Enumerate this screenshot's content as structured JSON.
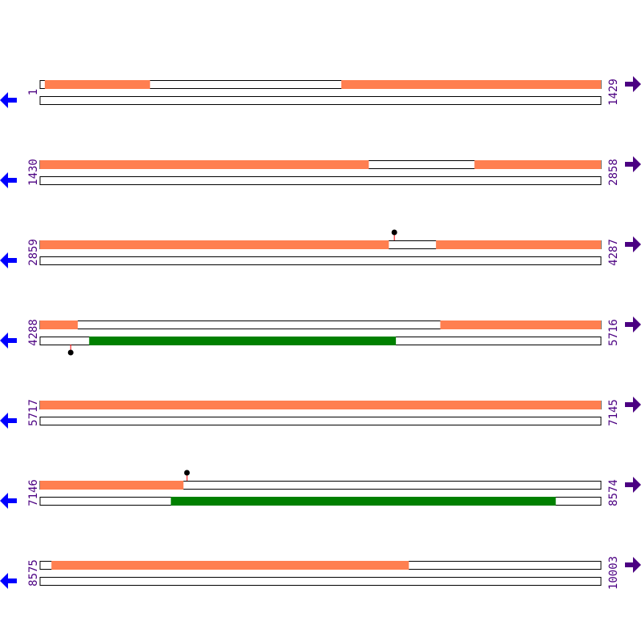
{
  "colors": {
    "top_feature": "#ff7f50",
    "bottom_feature": "#008000",
    "marker_stem": "#ff0000",
    "marker_head": "#000000",
    "label": "#4b0082",
    "left_arrow": "#0000ff",
    "right_arrow": "#4b0082"
  },
  "icons": {
    "left": "arrow-left-icon",
    "right": "arrow-right-icon"
  },
  "rows": [
    {
      "start": "1",
      "end": "1429",
      "top": [
        [
          13,
          281
        ],
        [
          768,
          1429
        ]
      ],
      "bottom": [],
      "markers": []
    },
    {
      "start": "1430",
      "end": "2858",
      "top": [
        [
          1430,
          2267
        ],
        [
          2536,
          2858
        ]
      ],
      "bottom": [],
      "markers": []
    },
    {
      "start": "2859",
      "end": "4287",
      "top": [
        [
          2859,
          3747
        ],
        [
          3867,
          4287
        ]
      ],
      "bottom": [],
      "markers": [
        {
          "pos": 3761,
          "track": "top"
        }
      ]
    },
    {
      "start": "4288",
      "end": "5716",
      "top": [
        [
          4288,
          4384
        ],
        [
          5307,
          5716
        ]
      ],
      "bottom": [
        [
          4413,
          5194
        ]
      ],
      "markers": [
        {
          "pos": 4366,
          "track": "bottom"
        }
      ]
    },
    {
      "start": "5717",
      "end": "7145",
      "top": [
        [
          5717,
          7145
        ]
      ],
      "bottom": [],
      "markers": []
    },
    {
      "start": "7146",
      "end": "8574",
      "top": [
        [
          7146,
          7511
        ]
      ],
      "bottom": [
        [
          7479,
          8459
        ]
      ],
      "markers": [
        {
          "pos": 7520,
          "track": "top"
        }
      ]
    },
    {
      "start": "8575",
      "end": "10003",
      "top": [
        [
          8604,
          9514
        ]
      ],
      "bottom": [],
      "markers": []
    }
  ]
}
